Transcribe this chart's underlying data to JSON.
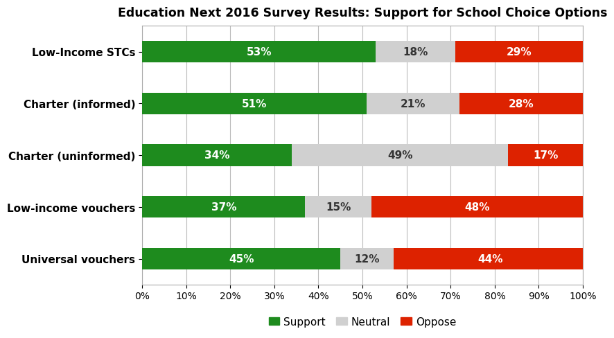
{
  "title": "Education Next 2016 Survey Results: Support for School Choice Options",
  "categories": [
    "Universal vouchers",
    "Low-income vouchers",
    "Charter (uninformed)",
    "Charter (informed)",
    "Low-Income STCs"
  ],
  "support": [
    45,
    37,
    34,
    51,
    53
  ],
  "neutral": [
    12,
    15,
    49,
    21,
    18
  ],
  "oppose": [
    44,
    48,
    17,
    28,
    29
  ],
  "support_color": "#1E8B1E",
  "neutral_color": "#D0D0D0",
  "oppose_color": "#DD2200",
  "text_color_white": "#FFFFFF",
  "text_color_dark": "#333333",
  "background_color": "#FFFFFF",
  "title_fontsize": 12.5,
  "label_fontsize": 11,
  "tick_fontsize": 10,
  "legend_fontsize": 11,
  "bar_height": 0.42,
  "xlim": [
    0,
    100
  ],
  "xticks": [
    0,
    10,
    20,
    30,
    40,
    50,
    60,
    70,
    80,
    90,
    100
  ],
  "xtick_labels": [
    "0%",
    "10%",
    "20%",
    "30%",
    "40%",
    "50%",
    "60%",
    "70%",
    "80%",
    "90%",
    "100%"
  ]
}
